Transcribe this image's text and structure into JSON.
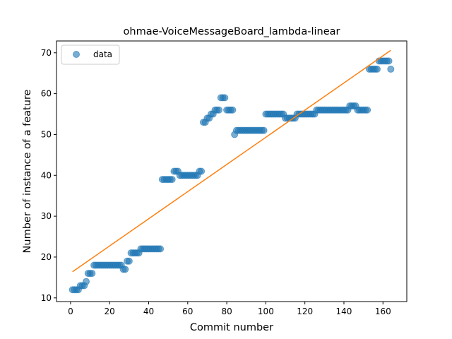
{
  "chart_data": {
    "type": "scatter",
    "title": "ohmae-VoiceMessageBoard_lambda-linear",
    "xlabel": "Commit number",
    "ylabel": "Number of instance of a feature",
    "xlim": [
      -7.2,
      172.2
    ],
    "ylim": [
      9.1,
      72.9
    ],
    "xticks": [
      0,
      20,
      40,
      60,
      80,
      100,
      120,
      140,
      160
    ],
    "yticks": [
      10,
      20,
      30,
      40,
      50,
      60,
      70
    ],
    "grid": false,
    "legend_position": "top-left",
    "series": [
      {
        "name": "data",
        "kind": "scatter",
        "color": "#1f77b4",
        "x": [
          1,
          2,
          3,
          4,
          5,
          6,
          7,
          8,
          9,
          10,
          11,
          12,
          13,
          14,
          15,
          16,
          17,
          18,
          19,
          20,
          21,
          22,
          23,
          24,
          25,
          26,
          27,
          28,
          29,
          30,
          31,
          32,
          33,
          34,
          35,
          36,
          37,
          38,
          39,
          40,
          41,
          42,
          43,
          44,
          45,
          46,
          47,
          48,
          49,
          50,
          51,
          52,
          53,
          54,
          55,
          56,
          57,
          58,
          59,
          60,
          61,
          62,
          63,
          64,
          65,
          66,
          67,
          68,
          69,
          70,
          71,
          72,
          73,
          74,
          75,
          76,
          77,
          78,
          79,
          80,
          81,
          82,
          83,
          84,
          85,
          86,
          87,
          88,
          89,
          90,
          91,
          92,
          93,
          94,
          95,
          96,
          97,
          98,
          99,
          100,
          101,
          102,
          103,
          104,
          105,
          106,
          107,
          108,
          109,
          110,
          111,
          112,
          113,
          114,
          115,
          116,
          117,
          118,
          119,
          120,
          121,
          122,
          123,
          124,
          125,
          126,
          127,
          128,
          129,
          130,
          131,
          132,
          133,
          134,
          135,
          136,
          137,
          138,
          139,
          140,
          141,
          142,
          143,
          144,
          145,
          146,
          147,
          148,
          149,
          150,
          151,
          152,
          153,
          154,
          155,
          156,
          157,
          158,
          159,
          160,
          161,
          162,
          163,
          164
        ],
        "y": [
          12,
          12,
          12,
          12,
          13,
          13,
          13,
          14,
          16,
          16,
          16,
          18,
          18,
          18,
          18,
          18,
          18,
          18,
          18,
          18,
          18,
          18,
          18,
          18,
          18,
          18,
          17,
          17,
          19,
          19,
          21,
          21,
          21,
          21,
          21,
          22,
          22,
          22,
          22,
          22,
          22,
          22,
          22,
          22,
          22,
          22,
          39,
          39,
          39,
          39,
          39,
          39,
          41,
          41,
          41,
          40,
          40,
          40,
          40,
          40,
          40,
          40,
          40,
          40,
          40,
          41,
          41,
          53,
          53,
          54,
          54,
          55,
          55,
          56,
          56,
          56,
          59,
          59,
          59,
          56,
          56,
          56,
          56,
          50,
          51,
          51,
          51,
          51,
          51,
          51,
          51,
          51,
          51,
          51,
          51,
          51,
          51,
          51,
          51,
          55,
          55,
          55,
          55,
          55,
          55,
          55,
          55,
          55,
          55,
          54,
          54,
          54,
          54,
          54,
          54,
          55,
          55,
          55,
          55,
          55,
          55,
          55,
          55,
          55,
          55,
          56,
          56,
          56,
          56,
          56,
          56,
          56,
          56,
          56,
          56,
          56,
          56,
          56,
          56,
          56,
          56,
          56,
          57,
          57,
          57,
          57,
          56,
          56,
          56,
          56,
          56,
          56,
          66,
          66,
          66,
          66,
          66,
          68,
          68,
          68,
          68,
          68,
          68,
          66
        ]
      },
      {
        "name": "",
        "kind": "line",
        "color": "#ff7f0e",
        "x": [
          1,
          164
        ],
        "y": [
          16.4,
          70.6
        ]
      }
    ]
  }
}
